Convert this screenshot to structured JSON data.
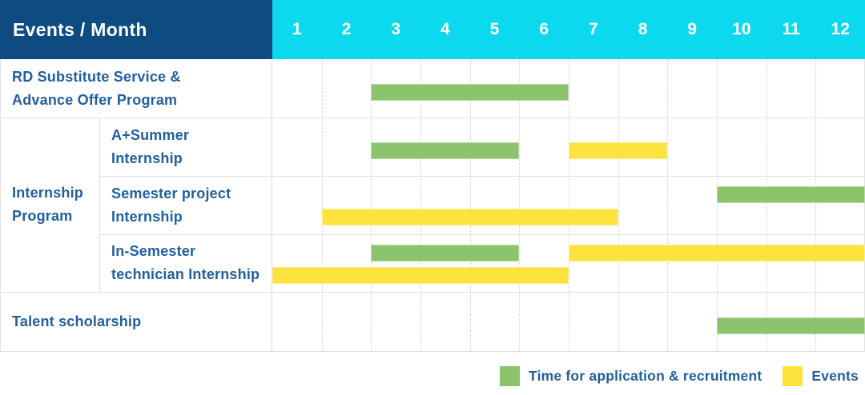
{
  "header": {
    "events_month_label": "Events / Month",
    "months": [
      "1",
      "2",
      "3",
      "4",
      "5",
      "6",
      "7",
      "8",
      "9",
      "10",
      "11",
      "12"
    ]
  },
  "row_labels": {
    "rd_substitute": "RD Substitute Service & Advance Offer Program",
    "internship_group": "Internship Program",
    "a_summer": "A+Summer Internship",
    "semester_project": "Semester project Internship",
    "in_semester": "In-Semester technician Internship",
    "talent_scholarship": "Talent scholarship"
  },
  "colors": {
    "header_bg": "#0d4b80",
    "months_bg": "#0cd9ee",
    "text_blue": "#215f9f",
    "green": "#8bc46d",
    "yellow": "#fee33e"
  },
  "legend": [
    {
      "key": "application_recruitment",
      "label": "Time for application & recruitment",
      "color": "#8bc46d"
    },
    {
      "key": "events",
      "label": "Events",
      "color": "#fee33e"
    }
  ],
  "chart_data": {
    "type": "bar",
    "subtype": "gantt-schedule",
    "title": "Events / Month",
    "x_axis": {
      "label": "Month",
      "ticks": [
        "1",
        "2",
        "3",
        "4",
        "5",
        "6",
        "7",
        "8",
        "9",
        "10",
        "11",
        "12"
      ],
      "range": [
        1,
        12
      ]
    },
    "grid": "dashed-vertical-month-lines",
    "legend_position": "bottom-right",
    "series_legend": [
      {
        "key": "application_recruitment",
        "name": "Time for application & recruitment",
        "color": "#8bc46d"
      },
      {
        "key": "events",
        "name": "Events",
        "color": "#fee33e"
      }
    ],
    "rows": [
      {
        "group": null,
        "label": "RD Substitute Service & Advance Offer Program",
        "bars": [
          {
            "series": "application_recruitment",
            "start_month": 3,
            "end_month": 6,
            "lane": 0
          }
        ]
      },
      {
        "group": "Internship Program",
        "label": "A+Summer Internship",
        "bars": [
          {
            "series": "application_recruitment",
            "start_month": 3,
            "end_month": 5,
            "lane": 0
          },
          {
            "series": "events",
            "start_month": 7,
            "end_month": 8,
            "lane": 0
          }
        ]
      },
      {
        "group": "Internship Program",
        "label": "Semester project Internship",
        "bars": [
          {
            "series": "application_recruitment",
            "start_month": 10,
            "end_month": 12,
            "lane": 0
          },
          {
            "series": "events",
            "start_month": 2,
            "end_month": 7,
            "lane": 1
          }
        ]
      },
      {
        "group": "Internship Program",
        "label": "In-Semester technician Internship",
        "bars": [
          {
            "series": "application_recruitment",
            "start_month": 3,
            "end_month": 5,
            "lane": 0
          },
          {
            "series": "events",
            "start_month": 7,
            "end_month": 12,
            "lane": 0
          },
          {
            "series": "events",
            "start_month": 1,
            "end_month": 6,
            "lane": 1
          }
        ]
      },
      {
        "group": null,
        "label": "Talent scholarship",
        "bars": [
          {
            "series": "application_recruitment",
            "start_month": 10,
            "end_month": 12,
            "lane": 0
          }
        ]
      }
    ]
  }
}
